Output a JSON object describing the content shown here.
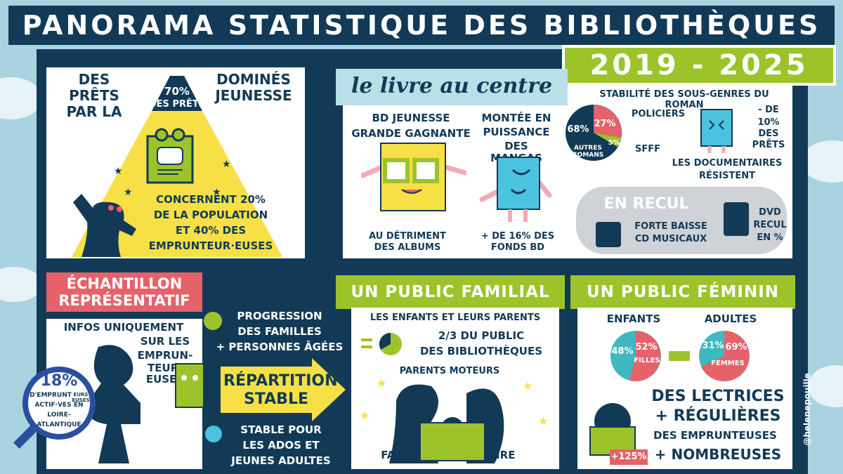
{
  "header": {
    "title": "PANORAMA STATISTIQUE DES BIBLIOTHÈQUES",
    "years": "2019 - 2025"
  },
  "prets": {
    "left": "DES PRÊTS PAR LA",
    "right": "DOMINÉS JEUNESSE",
    "pct": "70%",
    "pct_label": "DES PRÊTS",
    "line1": "CONCERNENT 20%",
    "line2": "DE LA POPULATION",
    "line3": "ET 40% DES",
    "line4": "EMPRUNTEUR·EUSES"
  },
  "livre": {
    "heading": "le livre au centre",
    "bd_title1": "BD JEUNESSE",
    "bd_title2": "GRANDE GAGNANTE",
    "bd_foot1": "AU DÉTRIMENT",
    "bd_foot2": "DES ALBUMS",
    "manga_title1": "MONTÉE EN",
    "manga_title2": "PUISSANCE",
    "manga_title3": "DES MANGAS",
    "manga_foot1": "+ DE 16% DES",
    "manga_foot2": "FONDS BD",
    "roman_title": "STABILITÉ DES SOUS-GENRES DU ROMAN",
    "roman_pct_autres": "68%",
    "roman_pct_policiers": "27%",
    "roman_pct_sfff": "5%",
    "roman_autres_label": "AUTRES ROMANS",
    "policiers": "POLICIERS",
    "sfff": "SFFF",
    "doc1": "- DE",
    "doc2": "10%",
    "doc3": "DES",
    "doc4": "PRÊTS",
    "doc_foot1": "LES DOCUMENTAIRES",
    "doc_foot2": "RÉSISTENT"
  },
  "recul": {
    "title": "EN RECUL",
    "cd1": "FORTE BAISSE",
    "cd2": "CD MUSICAUX",
    "dvd1": "DVD",
    "dvd2": "RECUL",
    "dvd3": "EN %"
  },
  "echantillon": {
    "title1": "ÉCHANTILLON",
    "title2": "REPRÉSENTATIF",
    "info1": "INFOS UNIQUEMENT",
    "info2": "SUR LES",
    "info3": "EMPRUN-",
    "info4": "TEUR·",
    "info5": "EUSES",
    "loupe_pct": "18%",
    "loupe_l1": "D'EMPRUNT",
    "loupe_l1b": "EURS EUSES",
    "loupe_l2": "ACTIF·VES EN",
    "loupe_l3": "LOIRE-",
    "loupe_l4": "ATLANTIQUE",
    "prog1": "PROGRESSION",
    "prog2": "DES FAMILLES",
    "prog3": "+ PERSONNES ÂGÉES",
    "rep1": "RÉPARTITION",
    "rep2": "STABLE",
    "stable1": "STABLE POUR",
    "stable2": "LES ADOS ET",
    "stable3": "JEUNES ADULTES"
  },
  "familial": {
    "title": "UN PUBLIC FAMILIAL",
    "sub": "LES ENFANTS ET LEURS PARENTS",
    "frac1": "2/3 DU PUBLIC",
    "frac2": "DES BIBLIOTHÈQUES",
    "moteurs": "PARENTS MOTEURS",
    "faire": "FAIRE",
    "lire": "LIRE"
  },
  "feminin": {
    "title": "UN PUBLIC FÉMININ",
    "enfants": "ENFANTS",
    "adultes": "ADULTES",
    "enf_g": "48%",
    "enf_f": "52%",
    "enf_f_label": "FILLES",
    "adu_h": "31%",
    "adu_f": "69%",
    "adu_f_label": "FEMMES",
    "l1": "DES LECTRICES",
    "l2": "+ RÉGULIÈRES",
    "l3": "DES EMPRUNTEUSES",
    "l4": "+ NOMBREUSES",
    "badge": "+125%",
    "credit": "@helenepouille"
  },
  "colors": {
    "navy": "#123a57",
    "green": "#9cc42a",
    "red": "#e5626a",
    "yellow": "#f7e046",
    "teal": "#3fb8bf"
  }
}
